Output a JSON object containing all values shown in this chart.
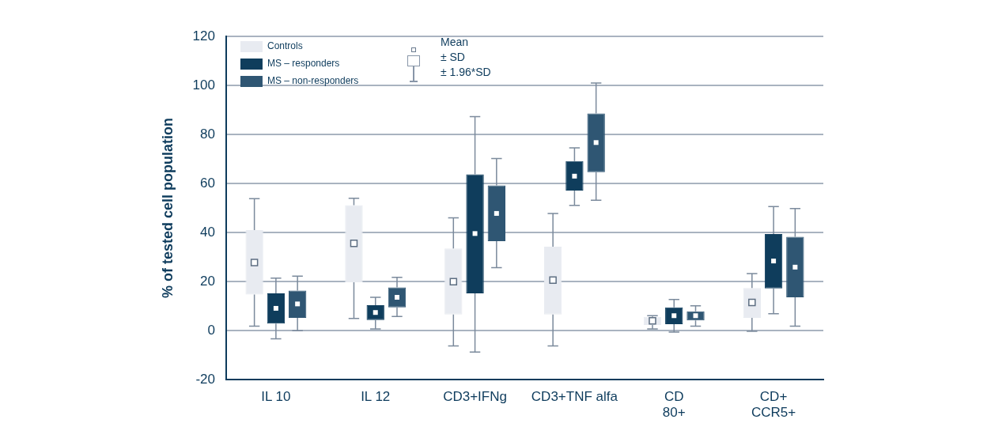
{
  "chart_data": {
    "type": "box",
    "ylabel": "% of tested cell population",
    "categories": [
      "IL 10",
      "IL 12",
      "CD3+IFNg",
      "CD3+TNF alfa",
      "CD\n80+",
      "CD+\nCCR5+"
    ],
    "ylim": [
      -20,
      120
    ],
    "yticks": [
      -20,
      0,
      20,
      40,
      60,
      80,
      100,
      120
    ],
    "grid": "y",
    "legend": "top left",
    "annotations": [
      "Mean",
      "± SD",
      "± 1.96*SD"
    ],
    "series": [
      {
        "name": "Controls",
        "color": "#e8ebf1",
        "boxes": [
          {
            "low": 1.8,
            "q1": 14.7,
            "mean": 27.8,
            "q3": 41,
            "high": 53.8
          },
          {
            "low": 5,
            "q1": 19.7,
            "mean": 35.6,
            "q3": 51.2,
            "high": 54
          },
          {
            "low": -6.2,
            "q1": 6.6,
            "mean": 20,
            "q3": 33.5,
            "high": 46
          },
          {
            "low": -6.2,
            "q1": 6.6,
            "mean": 20.6,
            "q3": 34.2,
            "high": 47.8
          },
          {
            "low": 0.7,
            "q1": 2.3,
            "mean": 4,
            "q3": 5.6,
            "high": 6.1
          },
          {
            "low": -0.3,
            "q1": 5.2,
            "mean": 11.5,
            "q3": 17.4,
            "high": 23.3
          }
        ]
      },
      {
        "name": "MS – responders",
        "color": "#0f3d5c",
        "boxes": [
          {
            "low": -3.3,
            "q1": 2.9,
            "mean": 9.1,
            "q3": 15.2,
            "high": 21.4
          },
          {
            "low": 0.7,
            "q1": 4.3,
            "mean": 7.4,
            "q3": 10.4,
            "high": 13.6
          },
          {
            "low": -8.7,
            "q1": 15.2,
            "mean": 39.6,
            "q3": 63.7,
            "high": 87.3
          },
          {
            "low": 51.1,
            "q1": 57.1,
            "mean": 63,
            "q3": 69.1,
            "high": 74.5
          },
          {
            "low": -0.6,
            "q1": 2.6,
            "mean": 6.1,
            "q3": 9.5,
            "high": 12.7
          },
          {
            "low": 6.9,
            "q1": 17.2,
            "mean": 28.4,
            "q3": 39.4,
            "high": 50.6
          }
        ]
      },
      {
        "name": "MS – non-responders",
        "color": "#2f5673",
        "boxes": [
          {
            "low": 0,
            "q1": 5.2,
            "mean": 10.9,
            "q3": 16.3,
            "high": 22.2
          },
          {
            "low": 5.8,
            "q1": 9.5,
            "mean": 13.6,
            "q3": 17.6,
            "high": 21.7
          },
          {
            "low": 25.7,
            "q1": 36.5,
            "mean": 47.8,
            "q3": 59.2,
            "high": 70.2
          },
          {
            "low": 53.2,
            "q1": 64.6,
            "mean": 76.7,
            "q3": 88.6,
            "high": 101
          },
          {
            "low": 1.8,
            "q1": 4.2,
            "mean": 6.1,
            "q3": 7.9,
            "high": 10.1
          },
          {
            "low": 1.8,
            "q1": 13.6,
            "mean": 25.9,
            "q3": 38.3,
            "high": 49.8
          }
        ]
      }
    ]
  }
}
